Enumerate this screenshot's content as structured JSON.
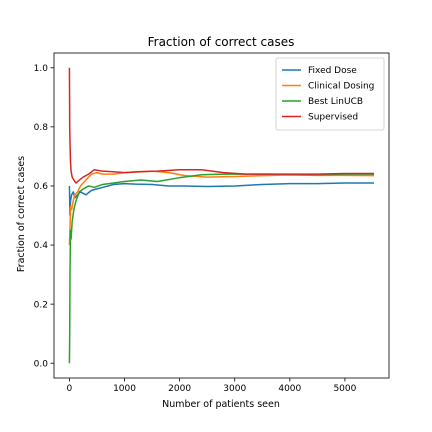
{
  "chart_data": {
    "type": "line",
    "title": "Fraction of correct cases",
    "xlabel": "Number of patients seen",
    "ylabel": "Fraction of correct cases",
    "xlim": [
      -280,
      5800
    ],
    "ylim": [
      -0.05,
      1.05
    ],
    "xticks": [
      0,
      1000,
      2000,
      3000,
      4000,
      5000
    ],
    "xtick_labels": [
      "0",
      "1000",
      "2000",
      "3000",
      "4000",
      "5000"
    ],
    "yticks": [
      0.0,
      0.2,
      0.4,
      0.6,
      0.8,
      1.0
    ],
    "ytick_labels": [
      "0.0",
      "0.2",
      "0.4",
      "0.6",
      "0.8",
      "1.0"
    ],
    "grid": false,
    "legend_position": "top-right",
    "series": [
      {
        "name": "Fixed Dose",
        "color": "#1f77b4",
        "x": [
          0,
          10,
          20,
          40,
          70,
          100,
          150,
          200,
          300,
          400,
          500,
          600,
          800,
          1000,
          1200,
          1500,
          1800,
          2100,
          2500,
          3000,
          3500,
          4000,
          4500,
          5000,
          5528
        ],
        "y": [
          0.6,
          0.5,
          0.55,
          0.57,
          0.58,
          0.56,
          0.57,
          0.58,
          0.57,
          0.585,
          0.59,
          0.595,
          0.605,
          0.608,
          0.606,
          0.605,
          0.6,
          0.6,
          0.598,
          0.6,
          0.605,
          0.608,
          0.608,
          0.61,
          0.61
        ]
      },
      {
        "name": "Clinical Dosing",
        "color": "#ff7f0e",
        "x": [
          0,
          10,
          20,
          40,
          70,
          100,
          150,
          200,
          300,
          400,
          500,
          600,
          800,
          1000,
          1200,
          1500,
          1800,
          2100,
          2500,
          3000,
          3500,
          4000,
          4500,
          5000,
          5528
        ],
        "y": [
          0.4,
          0.45,
          0.53,
          0.52,
          0.55,
          0.57,
          0.58,
          0.6,
          0.62,
          0.64,
          0.645,
          0.64,
          0.64,
          0.645,
          0.648,
          0.65,
          0.645,
          0.635,
          0.63,
          0.632,
          0.635,
          0.637,
          0.636,
          0.636,
          0.635
        ]
      },
      {
        "name": "Best LinUCB",
        "color": "#2ca02c",
        "x": [
          0,
          5,
          10,
          20,
          30,
          50,
          80,
          120,
          180,
          250,
          350,
          450,
          600,
          800,
          1000,
          1300,
          1600,
          2000,
          2400,
          2800,
          3200,
          3600,
          4000,
          4500,
          5000,
          5528
        ],
        "y": [
          0.0,
          0.1,
          0.3,
          0.45,
          0.42,
          0.48,
          0.52,
          0.55,
          0.58,
          0.59,
          0.6,
          0.595,
          0.605,
          0.61,
          0.615,
          0.62,
          0.615,
          0.628,
          0.638,
          0.64,
          0.64,
          0.64,
          0.639,
          0.638,
          0.64,
          0.64
        ]
      },
      {
        "name": "Supervised",
        "color": "#d62728",
        "x": [
          0,
          5,
          10,
          20,
          30,
          50,
          80,
          120,
          180,
          250,
          350,
          450,
          600,
          800,
          1000,
          1300,
          1600,
          2000,
          2400,
          2800,
          3200,
          3600,
          4000,
          4500,
          5000,
          5528
        ],
        "y": [
          1.0,
          0.8,
          0.75,
          0.68,
          0.65,
          0.63,
          0.62,
          0.61,
          0.62,
          0.63,
          0.64,
          0.655,
          0.65,
          0.648,
          0.645,
          0.648,
          0.65,
          0.655,
          0.655,
          0.645,
          0.64,
          0.64,
          0.64,
          0.64,
          0.642,
          0.642
        ]
      }
    ]
  }
}
